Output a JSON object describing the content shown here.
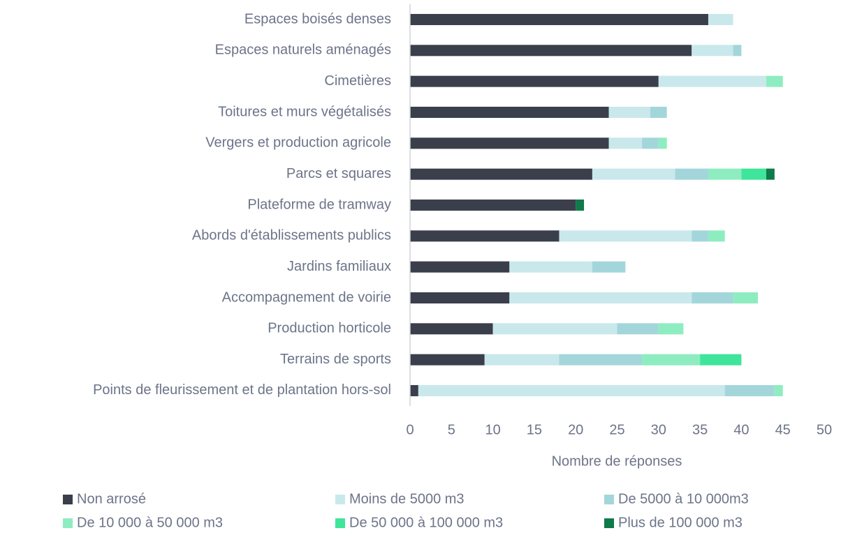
{
  "chart_data": {
    "type": "stacked_barh",
    "xlabel": "Nombre de réponses",
    "categories": [
      "Espaces boisés denses",
      "Espaces naturels aménagés",
      "Cimetières",
      "Toitures et murs végétalisés",
      "Vergers et production agricole",
      "Parcs et squares",
      "Plateforme de tramway",
      "Abords d'établissements publics",
      "Jardins familiaux",
      "Accompagnement de voirie",
      "Production horticole",
      "Terrains de sports",
      "Points de fleurissement et de plantation hors-sol"
    ],
    "series": [
      {
        "name": "Non arrosé",
        "color": "#3a3f4b",
        "values": [
          36,
          34,
          30,
          24,
          24,
          22,
          20,
          18,
          12,
          12,
          10,
          9,
          1
        ]
      },
      {
        "name": "Moins de 5000 m3",
        "color": "#c9e8ec",
        "values": [
          3,
          5,
          13,
          5,
          4,
          10,
          0,
          16,
          10,
          22,
          15,
          9,
          37
        ]
      },
      {
        "name": "De 5000 à 10 000m3",
        "color": "#a3d6db",
        "values": [
          0,
          1,
          0,
          2,
          2,
          4,
          0,
          2,
          4,
          5,
          5,
          10,
          6
        ]
      },
      {
        "name": "De 10 000 à 50 000 m3",
        "color": "#8eedc0",
        "values": [
          0,
          0,
          2,
          0,
          1,
          4,
          0,
          2,
          0,
          3,
          3,
          7,
          1
        ]
      },
      {
        "name": "De 50 000 à 100 000 m3",
        "color": "#3fe59a",
        "values": [
          0,
          0,
          0,
          0,
          0,
          3,
          0,
          0,
          0,
          0,
          0,
          5,
          0
        ]
      },
      {
        "name": "Plus de 100 000 m3",
        "color": "#0f7a4a",
        "values": [
          0,
          0,
          0,
          0,
          0,
          1,
          1,
          0,
          0,
          0,
          0,
          0,
          0
        ]
      }
    ],
    "xlim": [
      0,
      50
    ],
    "xticks": [
      0,
      5,
      10,
      15,
      20,
      25,
      30,
      35,
      40,
      45,
      50
    ]
  }
}
